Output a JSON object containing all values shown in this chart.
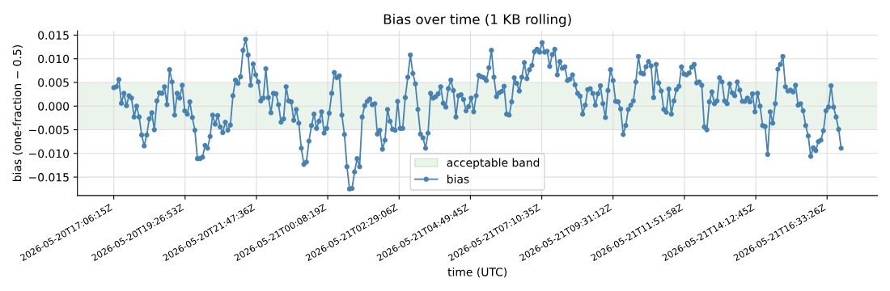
{
  "chart_data": {
    "type": "line",
    "title": "Bias over time (1 KB rolling)",
    "xlabel": "time (UTC)",
    "ylabel": "bias (one-fraction − 0.5)",
    "x": [
      "2026-05-20T17:06:15",
      "2026-05-20T17:11:15",
      "2026-05-20T17:16:15",
      "2026-05-20T17:21:15",
      "2026-05-20T17:26:15",
      "2026-05-20T17:31:15",
      "2026-05-20T17:36:15",
      "2026-05-20T17:41:15",
      "2026-05-20T17:46:15",
      "2026-05-20T17:51:15",
      "2026-05-20T17:56:15",
      "2026-05-20T18:01:15",
      "2026-05-20T18:06:15",
      "2026-05-20T18:11:15",
      "2026-05-20T18:16:15",
      "2026-05-20T18:21:15",
      "2026-05-20T18:26:15",
      "2026-05-20T18:31:15",
      "2026-05-20T18:36:15",
      "2026-05-20T18:41:15",
      "2026-05-20T18:46:15",
      "2026-05-20T18:51:15",
      "2026-05-20T18:56:15",
      "2026-05-20T19:01:15",
      "2026-05-20T19:06:15",
      "2026-05-20T19:11:15",
      "2026-05-20T19:16:15",
      "2026-05-20T19:21:15",
      "2026-05-20T19:26:15",
      "2026-05-20T19:31:15",
      "2026-05-20T19:36:15",
      "2026-05-20T19:41:15",
      "2026-05-20T19:46:15",
      "2026-05-20T19:51:15",
      "2026-05-20T19:56:15",
      "2026-05-20T20:01:15",
      "2026-05-20T20:06:15",
      "2026-05-20T20:11:15",
      "2026-05-20T20:16:15",
      "2026-05-20T20:21:15",
      "2026-05-20T20:26:15",
      "2026-05-20T20:31:15",
      "2026-05-20T20:36:15",
      "2026-05-20T20:41:15",
      "2026-05-20T20:46:15",
      "2026-05-20T20:51:15",
      "2026-05-20T20:56:15",
      "2026-05-20T21:01:15",
      "2026-05-20T21:06:15",
      "2026-05-20T21:11:15",
      "2026-05-20T21:16:15",
      "2026-05-20T21:21:15",
      "2026-05-20T21:26:15",
      "2026-05-20T21:31:15",
      "2026-05-20T21:36:15",
      "2026-05-20T21:41:15",
      "2026-05-20T21:46:15",
      "2026-05-20T21:51:15",
      "2026-05-20T21:56:15",
      "2026-05-20T22:01:15",
      "2026-05-20T22:06:15",
      "2026-05-20T22:11:15",
      "2026-05-20T22:16:15",
      "2026-05-20T22:21:15",
      "2026-05-20T22:26:15",
      "2026-05-20T22:31:15",
      "2026-05-20T22:36:15",
      "2026-05-20T22:41:15",
      "2026-05-20T22:46:15",
      "2026-05-20T22:51:15",
      "2026-05-20T22:56:15",
      "2026-05-20T23:01:15",
      "2026-05-20T23:06:15",
      "2026-05-20T23:11:15",
      "2026-05-20T23:16:15",
      "2026-05-20T23:21:15",
      "2026-05-20T23:26:15",
      "2026-05-20T23:31:15",
      "2026-05-20T23:36:15",
      "2026-05-20T23:41:15",
      "2026-05-20T23:46:15",
      "2026-05-20T23:51:15",
      "2026-05-20T23:56:15",
      "2026-05-21T00:01:15",
      "2026-05-21T00:06:15",
      "2026-05-21T00:11:15",
      "2026-05-21T00:16:15",
      "2026-05-21T00:21:15",
      "2026-05-21T00:26:15",
      "2026-05-21T00:31:15",
      "2026-05-21T00:36:15",
      "2026-05-21T00:41:15",
      "2026-05-21T00:46:15",
      "2026-05-21T00:51:15",
      "2026-05-21T00:56:15",
      "2026-05-21T01:01:15",
      "2026-05-21T01:06:15",
      "2026-05-21T01:11:15",
      "2026-05-21T01:16:15",
      "2026-05-21T01:21:15",
      "2026-05-21T01:26:15",
      "2026-05-21T01:31:15",
      "2026-05-21T01:36:15",
      "2026-05-21T01:41:15",
      "2026-05-21T01:46:15",
      "2026-05-21T01:51:15",
      "2026-05-21T01:56:15",
      "2026-05-21T02:01:15",
      "2026-05-21T02:06:15",
      "2026-05-21T02:11:15",
      "2026-05-21T02:16:15",
      "2026-05-21T02:21:15",
      "2026-05-21T02:26:15",
      "2026-05-21T02:31:15",
      "2026-05-21T02:36:15",
      "2026-05-21T02:41:15",
      "2026-05-21T02:46:15",
      "2026-05-21T02:51:15",
      "2026-05-21T02:56:15",
      "2026-05-21T03:01:15",
      "2026-05-21T03:06:15",
      "2026-05-21T03:11:15",
      "2026-05-21T03:16:15",
      "2026-05-21T03:21:15",
      "2026-05-21T03:26:15",
      "2026-05-21T03:31:15",
      "2026-05-21T03:36:15",
      "2026-05-21T03:41:15",
      "2026-05-21T03:46:15",
      "2026-05-21T03:51:15",
      "2026-05-21T03:56:15",
      "2026-05-21T04:01:15",
      "2026-05-21T04:06:15",
      "2026-05-21T04:11:15",
      "2026-05-21T04:16:15",
      "2026-05-21T04:21:15",
      "2026-05-21T04:26:15",
      "2026-05-21T04:31:15",
      "2026-05-21T04:36:15",
      "2026-05-21T04:41:15",
      "2026-05-21T04:46:15",
      "2026-05-21T04:51:15",
      "2026-05-21T04:56:15",
      "2026-05-21T05:01:15",
      "2026-05-21T05:06:15",
      "2026-05-21T05:11:15",
      "2026-05-21T05:16:15",
      "2026-05-21T05:21:15",
      "2026-05-21T05:26:15",
      "2026-05-21T05:31:15",
      "2026-05-21T05:36:15",
      "2026-05-21T05:41:15",
      "2026-05-21T05:46:15",
      "2026-05-21T05:51:15",
      "2026-05-21T05:56:15",
      "2026-05-21T06:01:15",
      "2026-05-21T06:06:15",
      "2026-05-21T06:11:15",
      "2026-05-21T06:16:15",
      "2026-05-21T06:21:15",
      "2026-05-21T06:26:15",
      "2026-05-21T06:31:15",
      "2026-05-21T06:36:15",
      "2026-05-21T06:41:15",
      "2026-05-21T06:46:15",
      "2026-05-21T06:51:15",
      "2026-05-21T06:56:15",
      "2026-05-21T07:01:15",
      "2026-05-21T07:06:15",
      "2026-05-21T07:11:15",
      "2026-05-21T07:16:15",
      "2026-05-21T07:21:15",
      "2026-05-21T07:26:15",
      "2026-05-21T07:31:15",
      "2026-05-21T07:36:15",
      "2026-05-21T07:41:15",
      "2026-05-21T07:46:15",
      "2026-05-21T07:51:15",
      "2026-05-21T07:56:15",
      "2026-05-21T08:01:15",
      "2026-05-21T08:06:15",
      "2026-05-21T08:11:15",
      "2026-05-21T08:16:15",
      "2026-05-21T08:21:15",
      "2026-05-21T08:26:15",
      "2026-05-21T08:31:15",
      "2026-05-21T08:36:15",
      "2026-05-21T08:41:15",
      "2026-05-21T08:46:15",
      "2026-05-21T08:51:15",
      "2026-05-21T08:56:15",
      "2026-05-21T09:01:15",
      "2026-05-21T09:06:15",
      "2026-05-21T09:11:15",
      "2026-05-21T09:16:15",
      "2026-05-21T09:21:15",
      "2026-05-21T09:26:15",
      "2026-05-21T09:31:15",
      "2026-05-21T09:36:15",
      "2026-05-21T09:41:15",
      "2026-05-21T09:46:15",
      "2026-05-21T09:51:15",
      "2026-05-21T09:56:15",
      "2026-05-21T10:01:15",
      "2026-05-21T10:06:15",
      "2026-05-21T10:11:15",
      "2026-05-21T10:16:15",
      "2026-05-21T10:21:15",
      "2026-05-21T10:26:15",
      "2026-05-21T10:31:15",
      "2026-05-21T10:36:15",
      "2026-05-21T10:41:15",
      "2026-05-21T10:46:15",
      "2026-05-21T10:51:15",
      "2026-05-21T10:56:15",
      "2026-05-21T11:01:15",
      "2026-05-21T11:06:15",
      "2026-05-21T11:11:15",
      "2026-05-21T11:16:15",
      "2026-05-21T11:21:15",
      "2026-05-21T11:26:15",
      "2026-05-21T11:31:15",
      "2026-05-21T11:36:15",
      "2026-05-21T11:41:15",
      "2026-05-21T11:46:15",
      "2026-05-21T11:51:15",
      "2026-05-21T11:56:15",
      "2026-05-21T12:01:15",
      "2026-05-21T12:06:15",
      "2026-05-21T12:11:15",
      "2026-05-21T12:16:15",
      "2026-05-21T12:21:15",
      "2026-05-21T12:26:15",
      "2026-05-21T12:31:15",
      "2026-05-21T12:36:15",
      "2026-05-21T12:41:15",
      "2026-05-21T12:46:15",
      "2026-05-21T12:51:15",
      "2026-05-21T12:56:15",
      "2026-05-21T13:01:15",
      "2026-05-21T13:06:15",
      "2026-05-21T13:11:15",
      "2026-05-21T13:16:15",
      "2026-05-21T13:21:15",
      "2026-05-21T13:26:15",
      "2026-05-21T13:31:15",
      "2026-05-21T13:36:15",
      "2026-05-21T13:41:15",
      "2026-05-21T13:46:15",
      "2026-05-21T13:51:15",
      "2026-05-21T13:56:15",
      "2026-05-21T14:01:15",
      "2026-05-21T14:06:15",
      "2026-05-21T14:11:15",
      "2026-05-21T14:16:15",
      "2026-05-21T14:21:15",
      "2026-05-21T14:26:15",
      "2026-05-21T14:31:15",
      "2026-05-21T14:36:15",
      "2026-05-21T14:41:15",
      "2026-05-21T14:46:15",
      "2026-05-21T14:51:15",
      "2026-05-21T14:56:15",
      "2026-05-21T15:01:15",
      "2026-05-21T15:06:15",
      "2026-05-21T15:11:15",
      "2026-05-21T15:16:15",
      "2026-05-21T15:21:15",
      "2026-05-21T15:26:15",
      "2026-05-21T15:31:15",
      "2026-05-21T15:36:15",
      "2026-05-21T15:41:15",
      "2026-05-21T15:46:15",
      "2026-05-21T15:51:15",
      "2026-05-21T15:56:15",
      "2026-05-21T16:01:15",
      "2026-05-21T16:06:15",
      "2026-05-21T16:11:15",
      "2026-05-21T16:16:15",
      "2026-05-21T16:21:15",
      "2026-05-21T16:26:15",
      "2026-05-21T16:31:15",
      "2026-05-21T16:36:15",
      "2026-05-21T16:41:15",
      "2026-05-21T16:46:15",
      "2026-05-21T16:51:15",
      "2026-05-21T16:56:15",
      "2026-05-21T17:01:15"
    ],
    "series": [
      {
        "name": "bias",
        "color": "#4682b4",
        "values": [
          0.0039,
          0.0041,
          0.0056,
          0.0006,
          0.0027,
          0.0001,
          0.0022,
          0.0017,
          -0.0023,
          0.0,
          -0.0023,
          -0.0061,
          -0.0084,
          -0.0061,
          -0.0027,
          -0.0014,
          -0.005,
          0.0011,
          0.0028,
          0.0027,
          0.0041,
          0.0003,
          0.0077,
          0.0051,
          -0.0019,
          0.0027,
          0.0017,
          0.0044,
          -0.001,
          -0.0017,
          0.0009,
          -0.0024,
          -0.0051,
          -0.0111,
          -0.0111,
          -0.0108,
          -0.0083,
          -0.0089,
          -0.0064,
          -0.0019,
          -0.0038,
          -0.002,
          -0.0044,
          -0.0056,
          -0.0034,
          -0.0051,
          -0.004,
          0.0022,
          0.0055,
          0.0048,
          0.0062,
          0.0118,
          0.0141,
          0.0108,
          0.0044,
          0.0089,
          0.0066,
          0.0051,
          0.0011,
          0.0017,
          0.0079,
          0.0018,
          -0.0014,
          0.0027,
          0.0026,
          0.0003,
          -0.0034,
          -0.0027,
          0.0041,
          0.0011,
          0.0009,
          -0.003,
          -0.0007,
          -0.0036,
          -0.0089,
          -0.0123,
          -0.0118,
          -0.0074,
          -0.0041,
          -0.0017,
          -0.0047,
          -0.0032,
          -0.0012,
          -0.0057,
          -0.0047,
          -0.0015,
          0.0027,
          0.0071,
          0.006,
          0.0064,
          -0.0019,
          -0.006,
          -0.0128,
          -0.0175,
          -0.0174,
          -0.0139,
          -0.0111,
          -0.0128,
          -0.0023,
          0.0001,
          0.001,
          0.0015,
          0.0003,
          0.0005,
          -0.0059,
          -0.0051,
          -0.0091,
          -0.0072,
          -0.0007,
          -0.0032,
          -0.0049,
          -0.0051,
          0.001,
          -0.0047,
          -0.0047,
          0.0018,
          0.0061,
          0.0108,
          0.0069,
          0.0047,
          -0.0007,
          -0.0059,
          -0.0067,
          -0.0089,
          -0.0057,
          0.0027,
          0.0017,
          0.002,
          0.0026,
          0.0041,
          0.0006,
          -0.0002,
          0.0037,
          0.0055,
          0.0033,
          -0.0023,
          0.0022,
          0.0024,
          0.0014,
          -0.001,
          -0.0001,
          0.0017,
          -0.0012,
          0.0022,
          0.0065,
          0.0062,
          0.006,
          0.0054,
          0.0081,
          0.0118,
          0.0061,
          0.002,
          0.0028,
          0.0031,
          0.0042,
          -0.0017,
          -0.0019,
          0.0009,
          0.006,
          0.0048,
          0.0032,
          0.0061,
          0.0092,
          0.0058,
          0.0077,
          0.0086,
          0.0115,
          0.012,
          0.0114,
          0.0134,
          0.0114,
          0.0116,
          0.0084,
          0.0109,
          0.012,
          0.0066,
          0.0094,
          0.008,
          0.0083,
          0.0054,
          0.0057,
          0.0066,
          0.0045,
          0.0027,
          0.0021,
          -0.0017,
          0.0002,
          0.0035,
          0.0037,
          0.0027,
          0.0002,
          0.0026,
          0.0043,
          0.0005,
          -0.0024,
          0.0033,
          0.0077,
          0.0054,
          0.001,
          0.0009,
          -0.0006,
          -0.006,
          -0.0041,
          -0.0007,
          0.0002,
          0.0011,
          0.0051,
          0.0105,
          0.007,
          0.0068,
          0.0083,
          0.0094,
          0.0085,
          0.0018,
          0.0088,
          0.0049,
          0.0032,
          -0.0007,
          -0.0013,
          0.0036,
          -0.0017,
          0.0011,
          0.0035,
          0.0042,
          0.0083,
          0.0068,
          0.0066,
          0.007,
          0.0082,
          0.0088,
          0.0049,
          0.0051,
          0.0044,
          -0.0044,
          -0.005,
          0.0009,
          0.003,
          0.0005,
          0.0011,
          0.006,
          0.0051,
          0.0011,
          0.0005,
          0.0047,
          0.0028,
          0.0022,
          0.0051,
          0.0034,
          0.001,
          0.001,
          0.0017,
          0.0009,
          0.0026,
          -0.0012,
          0.0027,
          0.0,
          -0.0041,
          -0.0043,
          -0.0102,
          -0.0012,
          -0.0036,
          0.0005,
          0.0078,
          0.0088,
          0.0105,
          0.0041,
          0.0032,
          0.0034,
          0.003,
          0.0044,
          0.0002,
          0.0005,
          -0.001,
          -0.0041,
          -0.0063,
          -0.0106,
          -0.0088,
          -0.0094,
          -0.0075,
          -0.0072,
          -0.0052,
          -0.001,
          -0.0002,
          0.0043,
          -0.0002,
          -0.0023,
          -0.0049,
          -0.0089
        ]
      }
    ],
    "marker": "circle",
    "line_style": "solid",
    "bands": [
      {
        "axis": "y",
        "from": -0.005,
        "to": 0.005,
        "label": "acceptable band",
        "color": "#eaf4ea"
      }
    ],
    "xlim": [
      "2026-05-20T15:54:30",
      "2026-05-21T18:13:00"
    ],
    "xticks": [
      {
        "value": "2026-05-20T17:06:15",
        "label": "2026-05-20T17:06:15Z"
      },
      {
        "value": "2026-05-20T19:26:53",
        "label": "2026-05-20T19:26:53Z"
      },
      {
        "value": "2026-05-20T21:47:36",
        "label": "2026-05-20T21:47:36Z"
      },
      {
        "value": "2026-05-21T00:08:19",
        "label": "2026-05-21T00:08:19Z"
      },
      {
        "value": "2026-05-21T02:29:06",
        "label": "2026-05-21T02:29:06Z"
      },
      {
        "value": "2026-05-21T04:49:45",
        "label": "2026-05-21T04:49:45Z"
      },
      {
        "value": "2026-05-21T07:10:35",
        "label": "2026-05-21T07:10:35Z"
      },
      {
        "value": "2026-05-21T09:31:12",
        "label": "2026-05-21T09:31:12Z"
      },
      {
        "value": "2026-05-21T11:51:58",
        "label": "2026-05-21T11:51:58Z"
      },
      {
        "value": "2026-05-21T14:12:45",
        "label": "2026-05-21T14:12:45Z"
      },
      {
        "value": "2026-05-21T16:33:26",
        "label": "2026-05-21T16:33:26Z"
      }
    ],
    "ylim": [
      -0.0189,
      0.0159
    ],
    "yticks": [
      {
        "value": -0.015,
        "label": "−0.015"
      },
      {
        "value": -0.01,
        "label": "−0.010"
      },
      {
        "value": -0.005,
        "label": "−0.005"
      },
      {
        "value": 0,
        "label": "0.000"
      },
      {
        "value": 0.005,
        "label": "0.005"
      },
      {
        "value": 0.01,
        "label": "0.010"
      },
      {
        "value": 0.015,
        "label": "0.015"
      }
    ],
    "grid": true,
    "legend": "bottom"
  }
}
